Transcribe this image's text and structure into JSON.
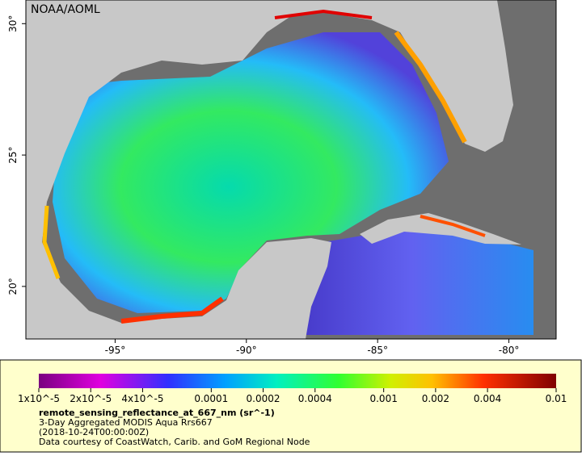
{
  "map": {
    "credit": "NOAA/AOML",
    "xlim": [
      -98.4,
      -78.2
    ],
    "ylim": [
      18.0,
      30.9
    ],
    "xticks": [
      {
        "value": -95,
        "label": "-95°"
      },
      {
        "value": -90,
        "label": "-90°"
      },
      {
        "value": -85,
        "label": "-85°"
      },
      {
        "value": -80,
        "label": "-80°"
      }
    ],
    "yticks": [
      {
        "value": 30,
        "label": "30°"
      },
      {
        "value": 25,
        "label": "25°"
      },
      {
        "value": 20,
        "label": "20°"
      }
    ]
  },
  "colorbar": {
    "log": true,
    "lim": [
      1e-05,
      0.01
    ],
    "ticks": [
      {
        "value": 1e-05,
        "label": "1x10^-5"
      },
      {
        "value": 2e-05,
        "label": "2x10^-5"
      },
      {
        "value": 4e-05,
        "label": "4x10^-5"
      },
      {
        "value": 0.0001,
        "label": "0.0001"
      },
      {
        "value": 0.0002,
        "label": "0.0002"
      },
      {
        "value": 0.0004,
        "label": "0.0004"
      },
      {
        "value": 0.001,
        "label": "0.001"
      },
      {
        "value": 0.002,
        "label": "0.002"
      },
      {
        "value": 0.004,
        "label": "0.004"
      },
      {
        "value": 0.01,
        "label": "0.01"
      }
    ]
  },
  "legend": {
    "variable": "remote_sensing_reflectance_at_667_nm (sr^-1)",
    "dataset": "3-Day Aggregated MODIS Aqua Rrs667",
    "time": "(2018-10-24T00:00:00Z)",
    "source": "Data courtesy of CoastWatch, Carib. and GoM Regional Node"
  }
}
